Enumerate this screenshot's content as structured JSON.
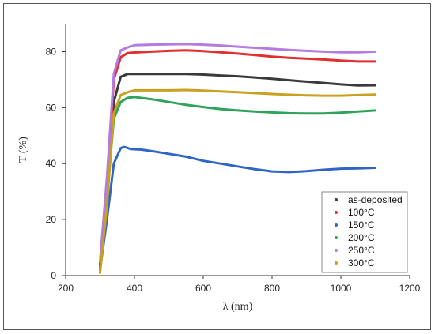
{
  "chart_data": {
    "type": "line",
    "xlabel": "λ (nm)",
    "ylabel": "T (%)",
    "xlim": [
      200,
      1200
    ],
    "ylim": [
      0,
      90
    ],
    "xticks": [
      200,
      400,
      600,
      800,
      1000,
      1200
    ],
    "yticks": [
      0,
      20,
      40,
      60,
      80
    ],
    "grid": false,
    "legend_position": "bottom-right",
    "series": [
      {
        "name": "as-deposited",
        "color": "#3a3a3a",
        "x": [
          300,
          320,
          340,
          360,
          380,
          400,
          450,
          500,
          550,
          600,
          650,
          700,
          750,
          800,
          850,
          900,
          950,
          1000,
          1050,
          1100
        ],
        "y": [
          4,
          30,
          62,
          71,
          72,
          72,
          72,
          72,
          72,
          71.8,
          71.5,
          71.2,
          70.8,
          70.3,
          69.8,
          69.3,
          68.8,
          68.3,
          67.9,
          68
        ]
      },
      {
        "name": "100°C",
        "color": "#e03030",
        "x": [
          300,
          320,
          340,
          360,
          380,
          400,
          450,
          500,
          550,
          600,
          650,
          700,
          750,
          800,
          850,
          900,
          950,
          1000,
          1050,
          1100
        ],
        "y": [
          3,
          32,
          70,
          78,
          79.5,
          79.7,
          80,
          80.3,
          80.5,
          80.2,
          79.8,
          79.3,
          78.8,
          78.2,
          77.8,
          77.5,
          77.2,
          76.8,
          76.5,
          76.5
        ]
      },
      {
        "name": "150°C",
        "color": "#2f66c4",
        "x": [
          300,
          320,
          340,
          360,
          370,
          390,
          420,
          450,
          500,
          550,
          600,
          650,
          700,
          750,
          800,
          850,
          900,
          950,
          1000,
          1050,
          1100
        ],
        "y": [
          2,
          20,
          40,
          45.5,
          46,
          45.2,
          45,
          44.5,
          43.5,
          42.5,
          41,
          40,
          39,
          38,
          37.2,
          37,
          37.3,
          37.8,
          38.2,
          38.3,
          38.5
        ]
      },
      {
        "name": "200°C",
        "color": "#2ea35a",
        "x": [
          300,
          320,
          340,
          360,
          380,
          400,
          450,
          500,
          550,
          600,
          650,
          700,
          750,
          800,
          850,
          900,
          950,
          1000,
          1050,
          1100
        ],
        "y": [
          2,
          28,
          56,
          62,
          63.5,
          63.8,
          63,
          62,
          61,
          60.2,
          59.5,
          59,
          58.6,
          58.3,
          58,
          57.9,
          57.9,
          58.2,
          58.6,
          59
        ]
      },
      {
        "name": "250°C",
        "color": "#b57be0",
        "x": [
          300,
          320,
          340,
          360,
          380,
          400,
          450,
          500,
          550,
          600,
          650,
          700,
          750,
          800,
          850,
          900,
          950,
          1000,
          1050,
          1100
        ],
        "y": [
          5,
          35,
          72,
          80.5,
          81.5,
          82.3,
          82.5,
          82.6,
          82.7,
          82.5,
          82.2,
          81.8,
          81.4,
          81,
          80.6,
          80.3,
          80,
          79.8,
          79.8,
          80
        ]
      },
      {
        "name": "300°C",
        "color": "#c9a020",
        "x": [
          300,
          320,
          340,
          360,
          380,
          400,
          450,
          500,
          550,
          600,
          650,
          700,
          750,
          800,
          850,
          900,
          950,
          1000,
          1050,
          1100
        ],
        "y": [
          1,
          25,
          58,
          64.5,
          65.5,
          66.2,
          66.2,
          66.2,
          66.3,
          66.1,
          65.8,
          65.5,
          65.2,
          64.9,
          64.6,
          64.4,
          64.3,
          64.3,
          64.5,
          64.7
        ]
      }
    ]
  }
}
